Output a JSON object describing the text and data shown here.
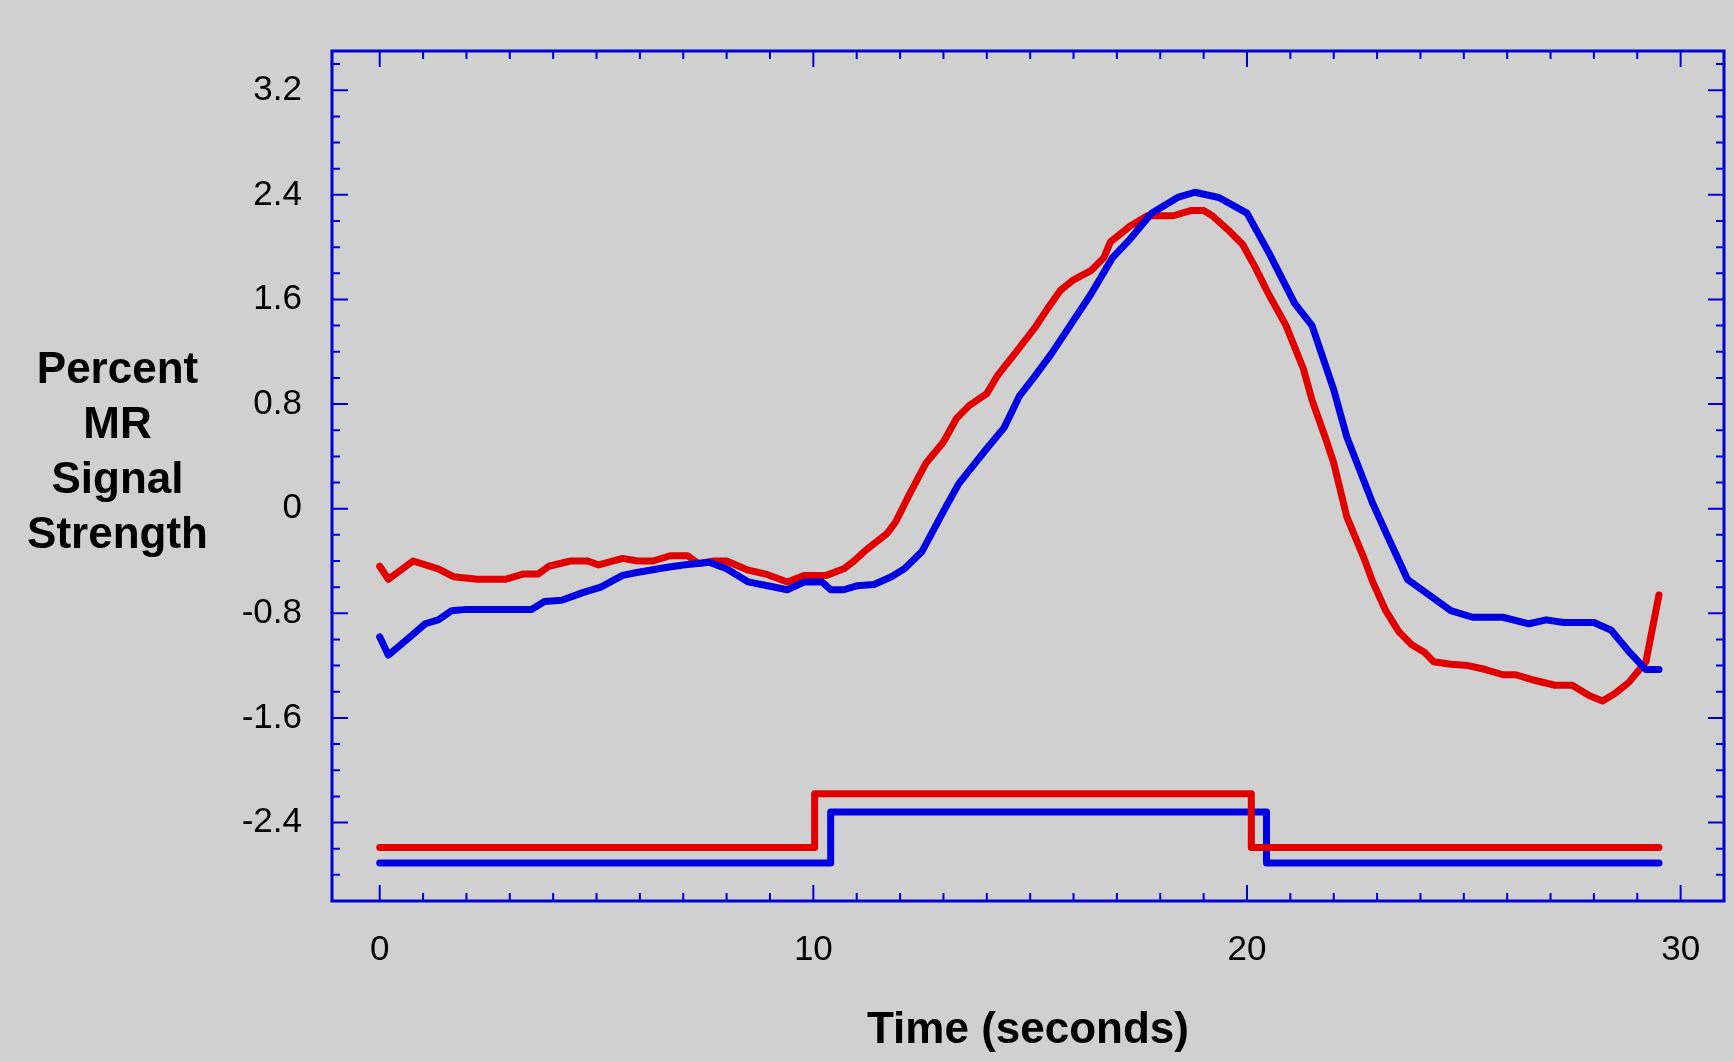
{
  "chart_data": {
    "type": "line",
    "xlabel": "Time (seconds)",
    "ylabel": "Percent MR Signal Strength",
    "xlim": [
      -1.1,
      31
    ],
    "ylim": [
      -3.0,
      3.5
    ],
    "xticks": [
      0,
      {
        "value": 1,
        "label": null
      },
      {
        "value": 2,
        "label": null
      },
      {
        "value": 3,
        "label": null
      },
      {
        "value": 4,
        "label": null
      },
      {
        "value": 5,
        "label": null
      },
      {
        "value": 6,
        "label": null
      },
      {
        "value": 7,
        "label": null
      },
      {
        "value": 8,
        "label": null
      },
      {
        "value": 9,
        "label": null
      },
      10,
      {
        "value": 11,
        "label": null
      },
      {
        "value": 12,
        "label": null
      },
      {
        "value": 13,
        "label": null
      },
      {
        "value": 14,
        "label": null
      },
      {
        "value": 15,
        "label": null
      },
      {
        "value": 16,
        "label": null
      },
      {
        "value": 17,
        "label": null
      },
      {
        "value": 18,
        "label": null
      },
      {
        "value": 19,
        "label": null
      },
      20,
      {
        "value": 21,
        "label": null
      },
      {
        "value": 22,
        "label": null
      },
      {
        "value": 23,
        "label": null
      },
      {
        "value": 24,
        "label": null
      },
      {
        "value": 25,
        "label": null
      },
      {
        "value": 26,
        "label": null
      },
      {
        "value": 27,
        "label": null
      },
      {
        "value": 28,
        "label": null
      },
      {
        "value": 29,
        "label": null
      },
      30
    ],
    "yticks": [
      {
        "value": -2.8,
        "label": null
      },
      {
        "value": -2.6,
        "label": null
      },
      -2.4,
      {
        "value": -2.2,
        "label": null
      },
      {
        "value": -2.0,
        "label": null
      },
      {
        "value": -1.8,
        "label": null
      },
      -1.6,
      {
        "value": -1.4,
        "label": null
      },
      {
        "value": -1.2,
        "label": null
      },
      {
        "value": -1.0,
        "label": null
      },
      -0.8,
      {
        "value": -0.6,
        "label": null
      },
      {
        "value": -0.4,
        "label": null
      },
      {
        "value": -0.2,
        "label": null
      },
      0,
      {
        "value": 0.2,
        "label": null
      },
      {
        "value": 0.4,
        "label": null
      },
      {
        "value": 0.6,
        "label": null
      },
      0.8,
      {
        "value": 1.0,
        "label": null
      },
      {
        "value": 1.2,
        "label": null
      },
      {
        "value": 1.4,
        "label": null
      },
      1.6,
      {
        "value": 1.8,
        "label": null
      },
      {
        "value": 2.0,
        "label": null
      },
      {
        "value": 2.2,
        "label": null
      },
      2.4,
      {
        "value": 2.6,
        "label": null
      },
      {
        "value": 2.8,
        "label": null
      },
      {
        "value": 3.0,
        "label": null
      },
      3.2,
      {
        "value": 3.4,
        "label": null
      }
    ],
    "grid": false,
    "legend": false,
    "marker": "none",
    "line_style": "solid",
    "series": [
      {
        "color": "#0000e0",
        "x": [
          0,
          0.2,
          0.7,
          1.05,
          1.35,
          1.66,
          2,
          3.5,
          3.8,
          4.2,
          4.7,
          5.1,
          5.6,
          5.9,
          6.6,
          7,
          7.6,
          8,
          8.5,
          9.4,
          9.8,
          10.2,
          10.4,
          10.7,
          11,
          11.4,
          11.8,
          12.1,
          12.5,
          13,
          13.35,
          14,
          14.4,
          14.75,
          15.1,
          15.5,
          16,
          16.4,
          16.9,
          17.3,
          17.8,
          18.4,
          18.8,
          19.35,
          20,
          20.5,
          21.1,
          21.5,
          22,
          22.3,
          22.9,
          23.2,
          23.7,
          24.2,
          24.7,
          25.2,
          25.9,
          26.5,
          26.9,
          27.3,
          28,
          28.4,
          28.8,
          29.2,
          29.5
        ],
        "values": [
          -0.98,
          -1.12,
          -0.98,
          -0.88,
          -0.85,
          -0.78,
          -0.77,
          -0.77,
          -0.71,
          -0.7,
          -0.64,
          -0.6,
          -0.51,
          -0.49,
          -0.45,
          -0.43,
          -0.41,
          -0.46,
          -0.56,
          -0.62,
          -0.56,
          -0.56,
          -0.62,
          -0.62,
          -0.59,
          -0.58,
          -0.52,
          -0.46,
          -0.33,
          -0.02,
          0.19,
          0.46,
          0.62,
          0.86,
          1.01,
          1.19,
          1.44,
          1.64,
          1.92,
          2.06,
          2.26,
          2.38,
          2.42,
          2.38,
          2.26,
          1.96,
          1.57,
          1.4,
          0.91,
          0.55,
          0.04,
          -0.18,
          -0.54,
          -0.66,
          -0.78,
          -0.83,
          -0.83,
          -0.88,
          -0.85,
          -0.87,
          -0.87,
          -0.93,
          -1.09,
          -1.23,
          -1.23
        ]
      },
      {
        "color": "#e00000",
        "x": [
          0,
          0.2,
          0.77,
          1.35,
          1.7,
          2.25,
          2.9,
          3.3,
          3.65,
          3.9,
          4.4,
          4.8,
          5.05,
          5.6,
          5.95,
          6.3,
          6.7,
          7.1,
          7.35,
          7.7,
          8,
          8.5,
          8.9,
          9.4,
          9.8,
          10.3,
          10.7,
          10.9,
          11.2,
          11.7,
          11.9,
          12.2,
          12.6,
          13,
          13.3,
          13.6,
          14,
          14.25,
          14.75,
          15.1,
          15.4,
          15.7,
          16,
          16.4,
          16.7,
          16.85,
          17.3,
          17.7,
          18.3,
          18.7,
          19,
          19.2,
          19.6,
          19.9,
          20.2,
          20.5,
          20.9,
          21.3,
          21.5,
          21.8,
          22,
          22.3,
          22.7,
          22.9,
          23.2,
          23.5,
          23.8,
          24.1,
          24.3,
          24.7,
          25.1,
          25.5,
          25.9,
          26.2,
          26.6,
          27.1,
          27.5,
          27.9,
          28.2,
          28.5,
          28.8,
          29.2,
          29.5
        ],
        "values": [
          -0.44,
          -0.54,
          -0.4,
          -0.46,
          -0.52,
          -0.54,
          -0.54,
          -0.5,
          -0.5,
          -0.44,
          -0.4,
          -0.4,
          -0.43,
          -0.38,
          -0.4,
          -0.4,
          -0.36,
          -0.36,
          -0.42,
          -0.4,
          -0.4,
          -0.47,
          -0.5,
          -0.56,
          -0.51,
          -0.51,
          -0.46,
          -0.41,
          -0.32,
          -0.19,
          -0.1,
          0.1,
          0.35,
          0.51,
          0.69,
          0.79,
          0.88,
          1.02,
          1.23,
          1.38,
          1.53,
          1.67,
          1.75,
          1.82,
          1.92,
          2.04,
          2.16,
          2.24,
          2.24,
          2.28,
          2.28,
          2.24,
          2.12,
          2.02,
          1.84,
          1.64,
          1.4,
          1.07,
          0.83,
          0.55,
          0.35,
          -0.06,
          -0.38,
          -0.56,
          -0.78,
          -0.94,
          -1.04,
          -1.1,
          -1.17,
          -1.19,
          -1.2,
          -1.23,
          -1.27,
          -1.27,
          -1.31,
          -1.35,
          -1.35,
          -1.43,
          -1.47,
          -1.41,
          -1.33,
          -1.17,
          -0.66
        ]
      },
      {
        "type": "step",
        "color": "#e00000",
        "x": [
          0,
          10.03,
          20.1,
          29.5
        ],
        "values": [
          -2.59,
          -2.18,
          -2.59,
          -2.59
        ]
      },
      {
        "type": "step",
        "color": "#0000e0",
        "x": [
          0,
          10.4,
          20.45,
          29.5
        ],
        "values": [
          -2.71,
          -2.32,
          -2.71,
          -2.71
        ]
      }
    ]
  }
}
